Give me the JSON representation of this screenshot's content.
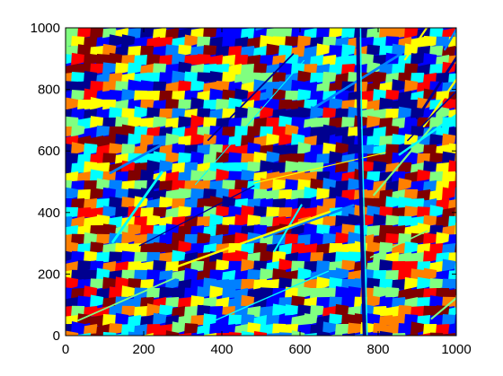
{
  "chart_data": {
    "type": "heatmap",
    "title": "",
    "xlabel": "",
    "ylabel": "",
    "xlim": [
      0,
      1000
    ],
    "ylim": [
      0,
      1000
    ],
    "x_ticks": [
      0,
      200,
      400,
      600,
      800,
      1000
    ],
    "y_ticks": [
      0,
      200,
      400,
      600,
      800,
      1000
    ],
    "x_tick_labels": [
      "0",
      "200",
      "400",
      "600",
      "800",
      "1000"
    ],
    "y_tick_labels": [
      "0",
      "200",
      "400",
      "600",
      "800",
      "1000"
    ],
    "colormap": "jet",
    "colormap_stops": [
      "#00008f",
      "#0000ff",
      "#0080ff",
      "#00ffff",
      "#80ff80",
      "#ffff00",
      "#ff8000",
      "#ff0000",
      "#800000"
    ],
    "grid": false,
    "legend": "none",
    "box": true,
    "features": {
      "description_values_in_data_units": true,
      "vertical_boundary_x": [
        765,
        760,
        755,
        750,
        748
      ],
      "vertical_boundary_y": [
        0,
        250,
        500,
        750,
        1000
      ]
    }
  }
}
